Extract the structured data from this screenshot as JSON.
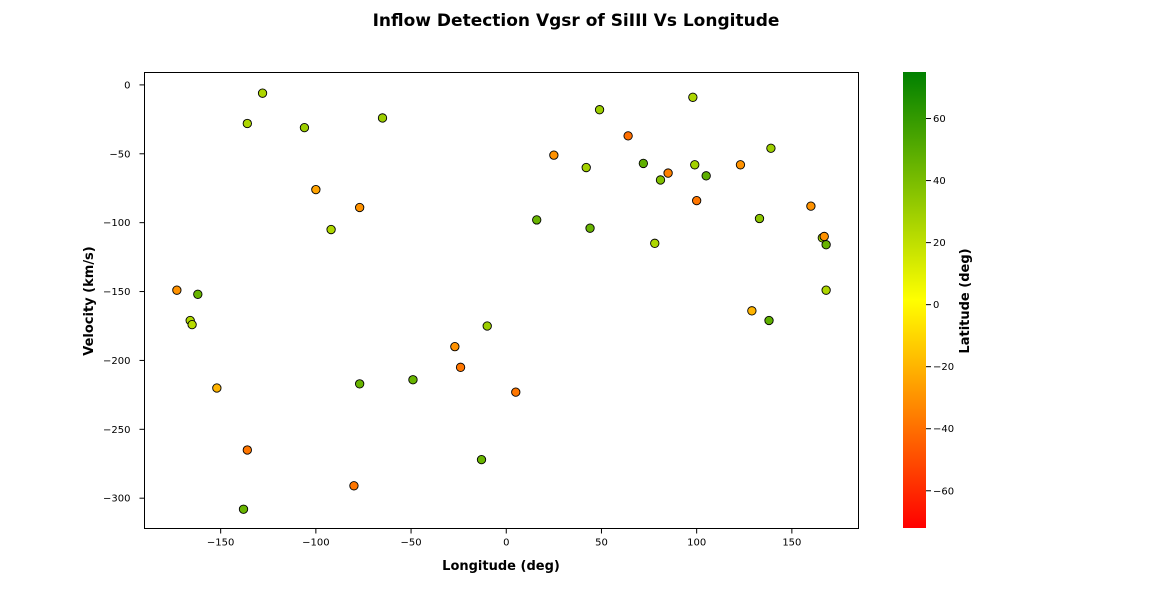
{
  "chart_data": {
    "type": "scatter",
    "title": "Inflow Detection Vgsr of SiIII Vs Longitude",
    "xlabel": "Longitude (deg)",
    "ylabel": "Velocity (km/s)",
    "xlim": [
      -190,
      185
    ],
    "ylim": [
      -322,
      9
    ],
    "xticks": [
      -150,
      -100,
      -50,
      0,
      50,
      100,
      150
    ],
    "yticks": [
      0,
      -50,
      -100,
      -150,
      -200,
      -250,
      -300
    ],
    "grid": false,
    "colorbar": {
      "label": "Latitude (deg)",
      "range": [
        -72,
        75
      ],
      "ticks": [
        -60,
        -40,
        -20,
        0,
        20,
        40,
        60
      ],
      "colormap": [
        "#ff0000",
        "#ffff00",
        "#008000"
      ]
    },
    "points": [
      {
        "x": -173,
        "y": -149,
        "lat": -30
      },
      {
        "x": -162,
        "y": -152,
        "lat": 45
      },
      {
        "x": -166,
        "y": -171,
        "lat": 25
      },
      {
        "x": -165,
        "y": -174,
        "lat": 22
      },
      {
        "x": -152,
        "y": -220,
        "lat": -20
      },
      {
        "x": -136,
        "y": -265,
        "lat": -38
      },
      {
        "x": -138,
        "y": -308,
        "lat": 45
      },
      {
        "x": -136,
        "y": -28,
        "lat": 25
      },
      {
        "x": -128,
        "y": -6,
        "lat": 25
      },
      {
        "x": -106,
        "y": -31,
        "lat": 30
      },
      {
        "x": -100,
        "y": -76,
        "lat": -25
      },
      {
        "x": -92,
        "y": -105,
        "lat": 25
      },
      {
        "x": -77,
        "y": -89,
        "lat": -30
      },
      {
        "x": -77,
        "y": -217,
        "lat": 45
      },
      {
        "x": -80,
        "y": -291,
        "lat": -38
      },
      {
        "x": -65,
        "y": -24,
        "lat": 30
      },
      {
        "x": -49,
        "y": -214,
        "lat": 45
      },
      {
        "x": -27,
        "y": -190,
        "lat": -30
      },
      {
        "x": -24,
        "y": -205,
        "lat": -38
      },
      {
        "x": -10,
        "y": -175,
        "lat": 30
      },
      {
        "x": -13,
        "y": -272,
        "lat": 45
      },
      {
        "x": 5,
        "y": -223,
        "lat": -38
      },
      {
        "x": 16,
        "y": -98,
        "lat": 45
      },
      {
        "x": 25,
        "y": -51,
        "lat": -30
      },
      {
        "x": 42,
        "y": -60,
        "lat": 28
      },
      {
        "x": 44,
        "y": -104,
        "lat": 45
      },
      {
        "x": 49,
        "y": -18,
        "lat": 30
      },
      {
        "x": 64,
        "y": -37,
        "lat": -40
      },
      {
        "x": 72,
        "y": -57,
        "lat": 48
      },
      {
        "x": 78,
        "y": -115,
        "lat": 25
      },
      {
        "x": 81,
        "y": -69,
        "lat": 38
      },
      {
        "x": 85,
        "y": -64,
        "lat": -35
      },
      {
        "x": 98,
        "y": -9,
        "lat": 25
      },
      {
        "x": 99,
        "y": -58,
        "lat": 28
      },
      {
        "x": 100,
        "y": -84,
        "lat": -38
      },
      {
        "x": 105,
        "y": -66,
        "lat": 48
      },
      {
        "x": 123,
        "y": -58,
        "lat": -30
      },
      {
        "x": 129,
        "y": -164,
        "lat": -20
      },
      {
        "x": 133,
        "y": -97,
        "lat": 35
      },
      {
        "x": 138,
        "y": -171,
        "lat": 48
      },
      {
        "x": 139,
        "y": -46,
        "lat": 30
      },
      {
        "x": 160,
        "y": -88,
        "lat": -30
      },
      {
        "x": 166,
        "y": -111,
        "lat": 30
      },
      {
        "x": 167,
        "y": -110,
        "lat": -30
      },
      {
        "x": 168,
        "y": -116,
        "lat": 45
      },
      {
        "x": 168,
        "y": -149,
        "lat": 25
      }
    ]
  }
}
